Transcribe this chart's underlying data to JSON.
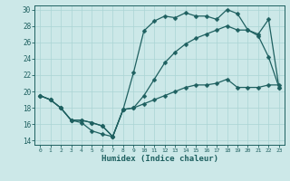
{
  "xlabel": "Humidex (Indice chaleur)",
  "bg_color": "#cce8e8",
  "line_color": "#1e6060",
  "grid_color": "#aad4d4",
  "xlim": [
    -0.5,
    23.5
  ],
  "ylim": [
    13.5,
    30.5
  ],
  "yticks": [
    14,
    16,
    18,
    20,
    22,
    24,
    26,
    28,
    30
  ],
  "xticks": [
    0,
    1,
    2,
    3,
    4,
    5,
    6,
    7,
    8,
    9,
    10,
    11,
    12,
    13,
    14,
    15,
    16,
    17,
    18,
    19,
    20,
    21,
    22,
    23
  ],
  "curve1_x": [
    0,
    1,
    2,
    3,
    4,
    5,
    6,
    7,
    8,
    9,
    10,
    11,
    12,
    13,
    14,
    15,
    16,
    17,
    18,
    19,
    20,
    21,
    22,
    23
  ],
  "curve1_y": [
    19.5,
    19.0,
    18.0,
    16.5,
    16.2,
    15.2,
    14.8,
    14.5,
    17.8,
    22.3,
    27.4,
    28.6,
    29.2,
    29.0,
    29.6,
    29.2,
    29.2,
    28.8,
    30.0,
    29.5,
    27.5,
    26.8,
    24.2,
    20.5
  ],
  "curve2_x": [
    0,
    1,
    2,
    3,
    4,
    5,
    6,
    7,
    8,
    9,
    10,
    11,
    12,
    13,
    14,
    15,
    16,
    17,
    18,
    19,
    20,
    21,
    22,
    23
  ],
  "curve2_y": [
    19.5,
    19.0,
    18.0,
    16.5,
    16.5,
    16.2,
    15.8,
    14.5,
    17.8,
    18.0,
    19.5,
    21.5,
    23.5,
    24.8,
    25.8,
    26.5,
    27.0,
    27.5,
    28.0,
    27.5,
    27.5,
    27.0,
    28.8,
    20.5
  ],
  "curve3_x": [
    0,
    1,
    2,
    3,
    4,
    5,
    6,
    7,
    8,
    9,
    10,
    11,
    12,
    13,
    14,
    15,
    16,
    17,
    18,
    19,
    20,
    21,
    22,
    23
  ],
  "curve3_y": [
    19.5,
    19.0,
    18.0,
    16.5,
    16.5,
    16.2,
    15.8,
    14.5,
    17.8,
    18.0,
    18.5,
    19.0,
    19.5,
    20.0,
    20.5,
    20.8,
    20.8,
    21.0,
    21.5,
    20.5,
    20.5,
    20.5,
    20.8,
    20.8
  ]
}
